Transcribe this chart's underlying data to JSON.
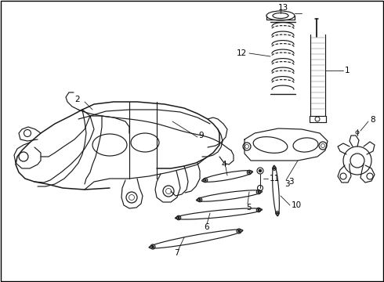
{
  "bg_color": "#ffffff",
  "line_color": "#1a1a1a",
  "label_color": "#000000",
  "label_fontsize": 7.5,
  "lw": 0.85,
  "border": true
}
